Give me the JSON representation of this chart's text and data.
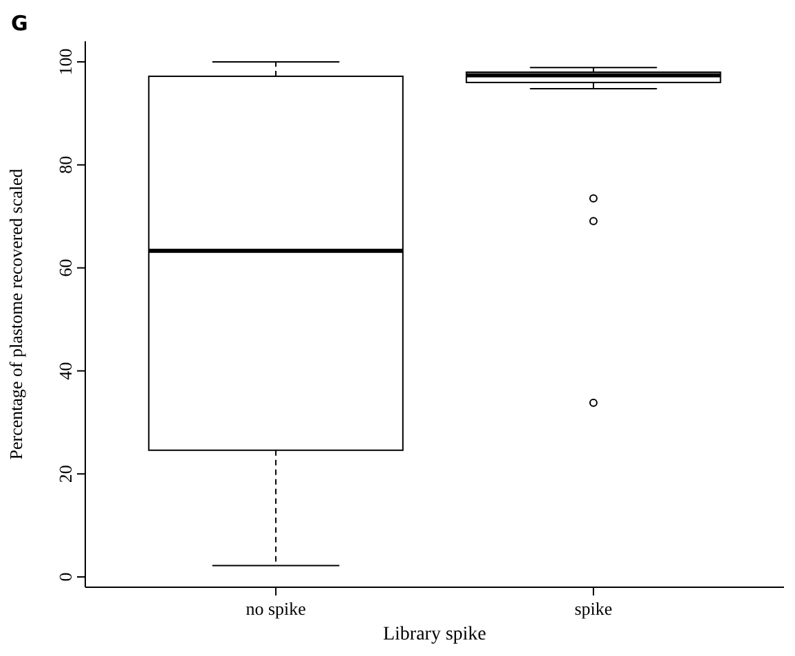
{
  "chart_data": {
    "type": "box",
    "title": "G",
    "xlabel": "Library spike",
    "ylabel": "Percentage of plastome recovered scaled",
    "categories": [
      "no spike",
      "spike"
    ],
    "boxes": [
      {
        "low": 2.2,
        "q1": 24.6,
        "median": 63.3,
        "q3": 97.2,
        "high": 100
      },
      {
        "low": 94.8,
        "q1": 96,
        "median": 97.4,
        "q3": 98,
        "high": 98.9,
        "outliers": [
          73.5,
          69.1,
          33.8
        ]
      }
    ],
    "ylim": [
      -2,
      104
    ],
    "yticks": [
      0,
      20,
      40,
      60,
      80,
      100
    ],
    "grid": false
  }
}
